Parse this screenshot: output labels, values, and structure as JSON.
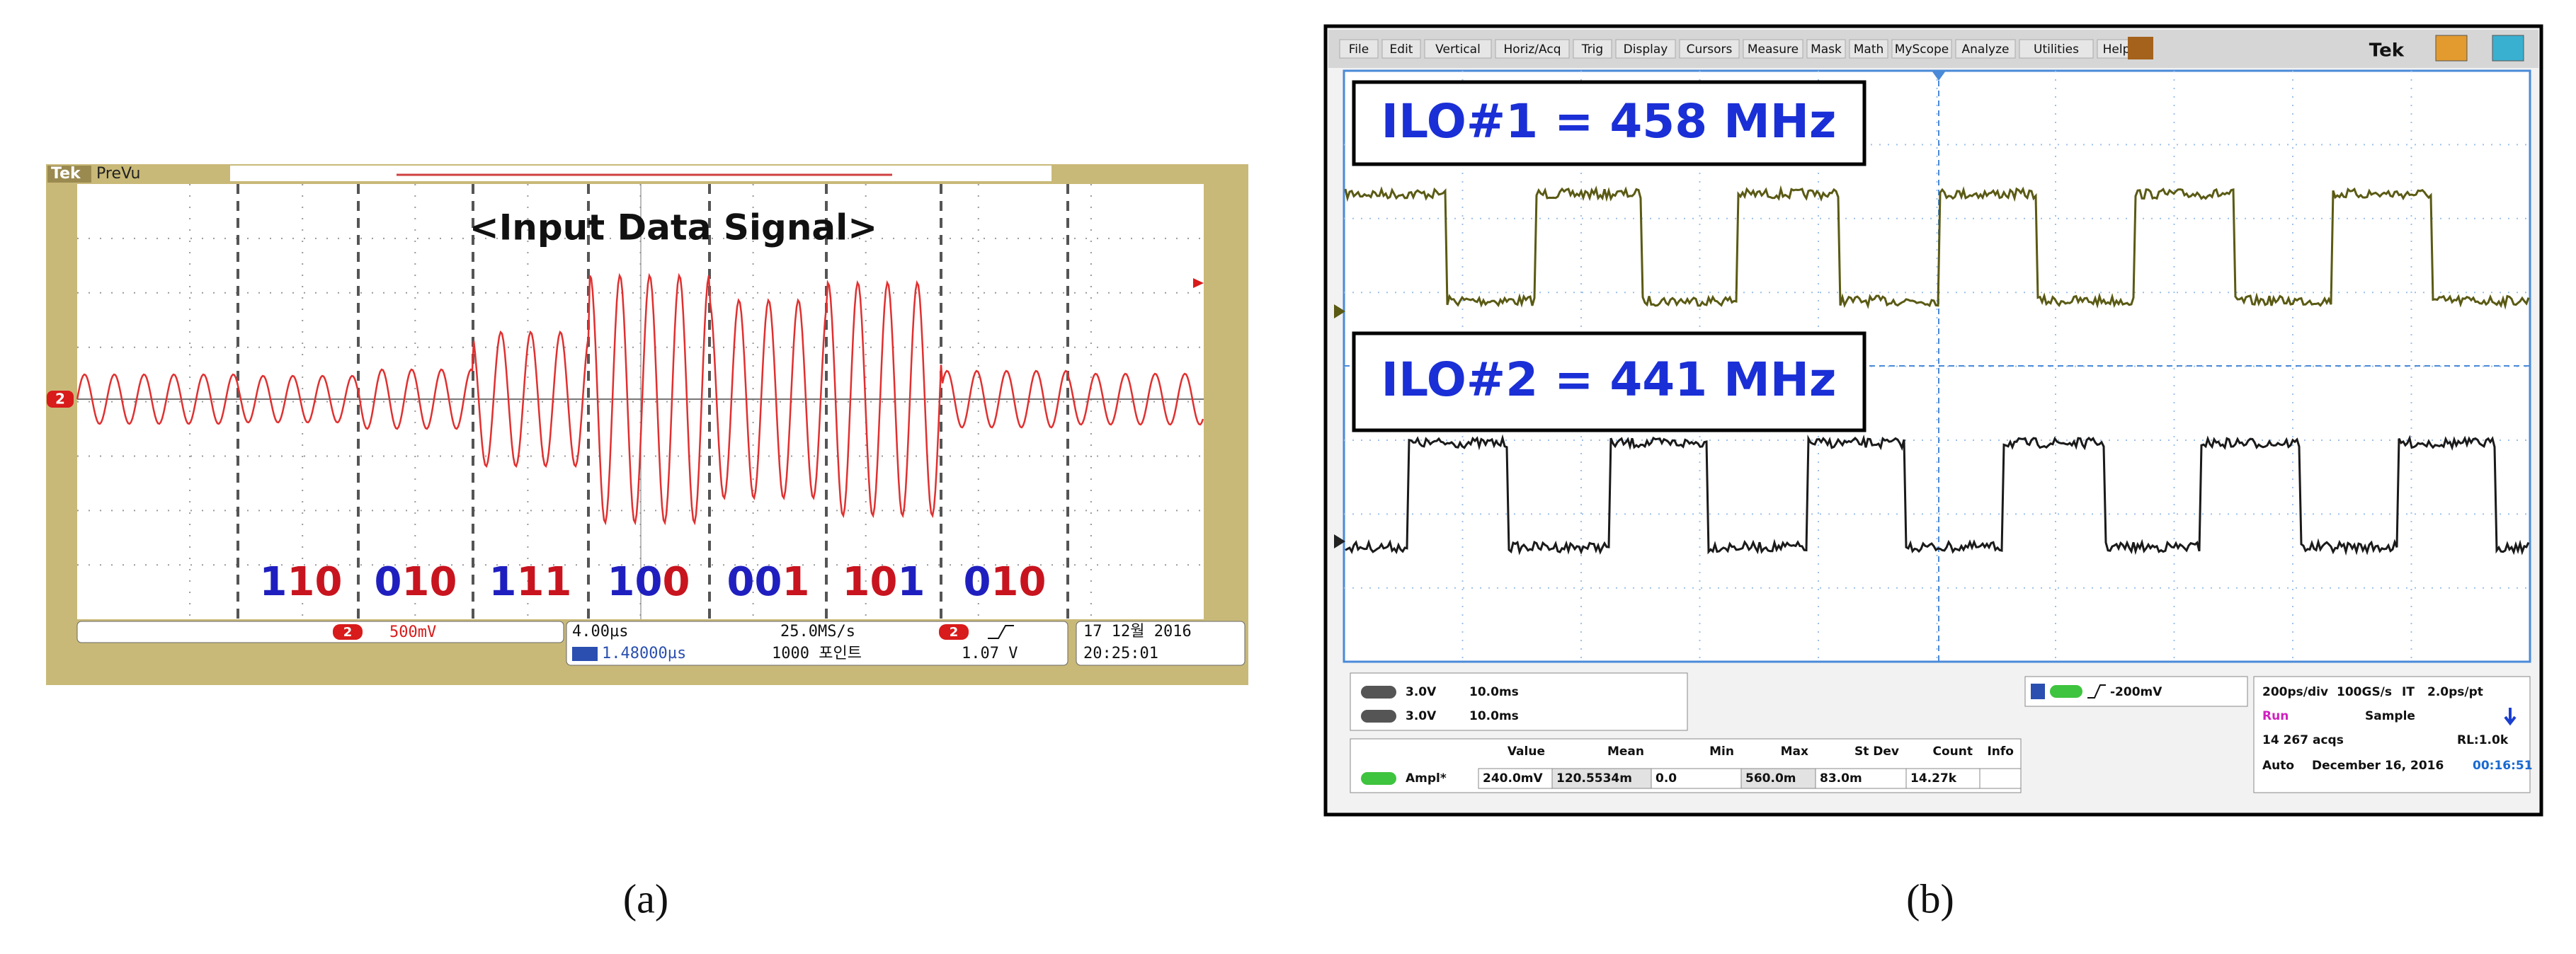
{
  "panel_a": {
    "brand": "Tek",
    "mode": "PreVu",
    "title": "<Input Data Signal>",
    "channel": "2",
    "bit_groups": [
      [
        {
          "text": "1",
          "color": "#1f1fbf"
        },
        {
          "text": "10",
          "color": "#c8141e"
        }
      ],
      [
        {
          "text": "0",
          "color": "#1f1fbf"
        },
        {
          "text": "10",
          "color": "#c8141e"
        }
      ],
      [
        {
          "text": "1",
          "color": "#1f1fbf"
        },
        {
          "text": "11",
          "color": "#c8141e"
        }
      ],
      [
        {
          "text": "10",
          "color": "#1f1fbf"
        },
        {
          "text": "0",
          "color": "#c8141e"
        }
      ],
      [
        {
          "text": "00",
          "color": "#1f1fbf"
        },
        {
          "text": "1",
          "color": "#c8141e"
        }
      ],
      [
        {
          "text": "10",
          "color": "#c8141e"
        },
        {
          "text": "1",
          "color": "#1f1fbf"
        }
      ],
      [
        {
          "text": "0",
          "color": "#1f1fbf"
        },
        {
          "text": "10",
          "color": "#c8141e"
        }
      ]
    ],
    "status": {
      "scale": "500mV",
      "timebase": "4.00µs",
      "sample_rate": "25.0MS/s",
      "position": "1.48000µs",
      "record": "1000 포인트",
      "trigger_level": "1.07 V",
      "date": "17 12월 2016",
      "time": "20:25:01"
    },
    "label": "(a)"
  },
  "panel_b": {
    "menu": [
      "File",
      "Edit",
      "Vertical",
      "Horiz/Acq",
      "Trig",
      "Display",
      "Cursors",
      "Measure",
      "Mask",
      "Math",
      "MyScope",
      "Analyze",
      "Utilities",
      "Help"
    ],
    "brand": "Tek",
    "annotations": [
      "ILO#1 = 458 MHz",
      "ILO#2 = 441 MHz"
    ],
    "channels": [
      {
        "scale": "3.0V",
        "time": "10.0ms"
      },
      {
        "scale": "3.0V",
        "time": "10.0ms"
      }
    ],
    "trigger": "-200mV",
    "measurement": {
      "headers": [
        "Value",
        "Mean",
        "Min",
        "Max",
        "St Dev",
        "Count",
        "Info"
      ],
      "name": "Ampl*",
      "row": [
        "240.0mV",
        "120.5534m",
        "0.0",
        "560.0m",
        "83.0m",
        "14.27k"
      ]
    },
    "acquisition": {
      "time_div": "200ps/div",
      "rate": "100GS/s",
      "mode_it": "IT",
      "resolution": "2.0ps/pt",
      "state": "Run",
      "sample": "Sample",
      "acqs": "14 267 acqs",
      "record": "RL:1.0k",
      "trigger_mode": "Auto",
      "date": "December 16, 2016",
      "time": "00:16:51"
    },
    "label": "(b)"
  }
}
